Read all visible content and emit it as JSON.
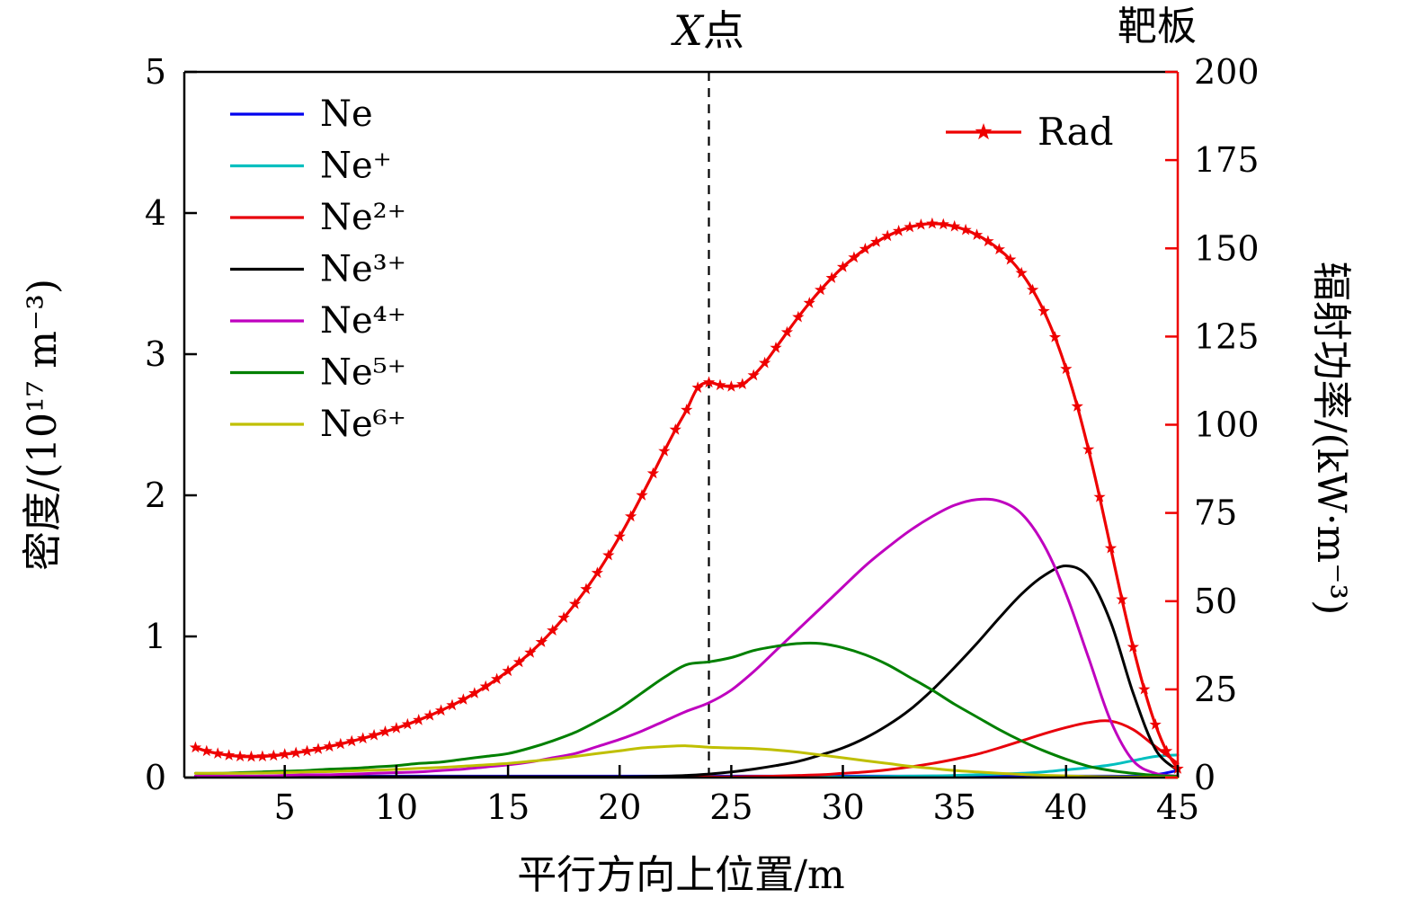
{
  "figure": {
    "background": "#ffffff",
    "axis_color": "#000000",
    "right_axis_color": "#ee0000"
  },
  "chart_data": {
    "type": "line",
    "title": "",
    "xlabel": "平行方向上位置/m",
    "ylabel_left": "密度/(10¹⁷ m⁻³)",
    "ylabel_right": "辐射功率/(kW·m⁻³)",
    "xlim": [
      0.5,
      45
    ],
    "ylim_left": [
      0,
      5
    ],
    "ylim_right": [
      0,
      200
    ],
    "x_ticks": [
      5,
      10,
      15,
      20,
      25,
      30,
      35,
      40,
      45
    ],
    "y_ticks_left": [
      0,
      1,
      2,
      3,
      4,
      5
    ],
    "y_ticks_right": [
      0,
      25,
      50,
      75,
      100,
      125,
      150,
      175,
      200
    ],
    "grid": false,
    "legend_left_position": "top-left",
    "legend_right_position": "top-right",
    "annotations": {
      "x_point_label": "X点",
      "x_point_x": 24,
      "target_plate_label": "靶板"
    },
    "x": [
      1,
      2,
      3,
      4,
      5,
      6,
      7,
      8,
      9,
      10,
      11,
      12,
      13,
      14,
      15,
      16,
      17,
      18,
      19,
      20,
      21,
      22,
      23,
      24,
      25,
      26,
      27,
      28,
      29,
      30,
      31,
      32,
      33,
      34,
      35,
      36,
      37,
      38,
      39,
      40,
      41,
      42,
      43,
      44,
      45
    ],
    "series": [
      {
        "id": "ne",
        "name": "Ne",
        "color": "#0000ee",
        "axis": "left",
        "values": [
          0.01,
          0.01,
          0.01,
          0.01,
          0.01,
          0.01,
          0.01,
          0.01,
          0.01,
          0.01,
          0.01,
          0.01,
          0.01,
          0.01,
          0.01,
          0.01,
          0.01,
          0.01,
          0.01,
          0.01,
          0.01,
          0.01,
          0.01,
          0.01,
          0.01,
          0.01,
          0.01,
          0.01,
          0.01,
          0.01,
          0.01,
          0.01,
          0.01,
          0.01,
          0.01,
          0.01,
          0.01,
          0.01,
          0.01,
          0.01,
          0.01,
          0.01,
          0.01,
          0.02,
          0.05
        ]
      },
      {
        "id": "ne1",
        "name": "Ne⁺",
        "color": "#00bfbf",
        "axis": "left",
        "values": [
          0.005,
          0.005,
          0.005,
          0.005,
          0.005,
          0.005,
          0.005,
          0.005,
          0.005,
          0.005,
          0.005,
          0.005,
          0.005,
          0.005,
          0.005,
          0.005,
          0.005,
          0.005,
          0.005,
          0.005,
          0.005,
          0.005,
          0.005,
          0.005,
          0.005,
          0.005,
          0.005,
          0.005,
          0.005,
          0.005,
          0.006,
          0.008,
          0.01,
          0.012,
          0.015,
          0.02,
          0.025,
          0.03,
          0.04,
          0.055,
          0.07,
          0.09,
          0.12,
          0.15,
          0.16
        ]
      },
      {
        "id": "ne2",
        "name": "Ne²⁺",
        "color": "#e8000b",
        "axis": "left",
        "values": [
          0.005,
          0.005,
          0.005,
          0.005,
          0.005,
          0.005,
          0.005,
          0.005,
          0.005,
          0.005,
          0.005,
          0.005,
          0.005,
          0.005,
          0.005,
          0.005,
          0.005,
          0.005,
          0.005,
          0.005,
          0.005,
          0.005,
          0.005,
          0.005,
          0.005,
          0.008,
          0.01,
          0.015,
          0.02,
          0.03,
          0.04,
          0.055,
          0.075,
          0.1,
          0.13,
          0.165,
          0.21,
          0.26,
          0.31,
          0.355,
          0.39,
          0.4,
          0.34,
          0.22,
          0.1
        ]
      },
      {
        "id": "ne3",
        "name": "Ne³⁺",
        "color": "#000000",
        "axis": "left",
        "values": [
          0.005,
          0.005,
          0.005,
          0.005,
          0.005,
          0.005,
          0.005,
          0.005,
          0.005,
          0.005,
          0.005,
          0.005,
          0.005,
          0.005,
          0.005,
          0.005,
          0.005,
          0.005,
          0.005,
          0.005,
          0.007,
          0.01,
          0.015,
          0.025,
          0.04,
          0.06,
          0.085,
          0.115,
          0.16,
          0.21,
          0.28,
          0.37,
          0.48,
          0.62,
          0.78,
          0.95,
          1.13,
          1.3,
          1.43,
          1.5,
          1.42,
          1.1,
          0.6,
          0.2,
          0.05
        ]
      },
      {
        "id": "ne4",
        "name": "Ne⁴⁺",
        "color": "#bf00bf",
        "axis": "left",
        "values": [
          0.01,
          0.01,
          0.01,
          0.01,
          0.015,
          0.02,
          0.02,
          0.025,
          0.03,
          0.035,
          0.04,
          0.05,
          0.06,
          0.075,
          0.09,
          0.11,
          0.14,
          0.17,
          0.22,
          0.27,
          0.33,
          0.4,
          0.47,
          0.53,
          0.62,
          0.75,
          0.9,
          1.05,
          1.2,
          1.35,
          1.5,
          1.63,
          1.75,
          1.85,
          1.93,
          1.97,
          1.96,
          1.87,
          1.65,
          1.3,
          0.85,
          0.4,
          0.12,
          0.03,
          0.01
        ]
      },
      {
        "id": "ne5",
        "name": "Ne⁵⁺",
        "color": "#008000",
        "axis": "left",
        "values": [
          0.03,
          0.03,
          0.035,
          0.04,
          0.045,
          0.05,
          0.06,
          0.065,
          0.075,
          0.085,
          0.1,
          0.11,
          0.13,
          0.15,
          0.17,
          0.21,
          0.26,
          0.32,
          0.4,
          0.49,
          0.6,
          0.71,
          0.8,
          0.82,
          0.85,
          0.9,
          0.93,
          0.95,
          0.95,
          0.92,
          0.87,
          0.8,
          0.71,
          0.62,
          0.52,
          0.43,
          0.34,
          0.26,
          0.19,
          0.13,
          0.08,
          0.05,
          0.03,
          0.015,
          0.01
        ]
      },
      {
        "id": "ne6",
        "name": "Ne⁶⁺",
        "color": "#bfbf00",
        "axis": "left",
        "values": [
          0.03,
          0.03,
          0.03,
          0.032,
          0.035,
          0.04,
          0.042,
          0.048,
          0.052,
          0.058,
          0.065,
          0.072,
          0.08,
          0.09,
          0.1,
          0.115,
          0.13,
          0.15,
          0.17,
          0.19,
          0.21,
          0.22,
          0.225,
          0.215,
          0.21,
          0.205,
          0.195,
          0.18,
          0.16,
          0.14,
          0.12,
          0.1,
          0.08,
          0.065,
          0.05,
          0.04,
          0.03,
          0.022,
          0.016,
          0.012,
          0.008,
          0.006,
          0.004,
          0.003,
          0.002
        ]
      }
    ],
    "rad_series": {
      "id": "rad",
      "name": "Rad",
      "color": "#ee0000",
      "axis": "right",
      "marker": "star",
      "x_start": 1,
      "x_step": 0.5,
      "values": [
        8.5,
        7.5,
        6.8,
        6.3,
        6.0,
        5.9,
        6.0,
        6.2,
        6.6,
        7.0,
        7.5,
        8.1,
        8.8,
        9.5,
        10.3,
        11.1,
        12.0,
        13.0,
        14.0,
        15.1,
        16.3,
        17.6,
        19.0,
        20.5,
        22.1,
        23.9,
        25.8,
        27.9,
        30.2,
        32.7,
        35.4,
        38.4,
        41.7,
        45.3,
        49.2,
        53.4,
        58.0,
        63.0,
        68.3,
        74.0,
        80.0,
        86.2,
        92.5,
        98.6,
        104.2,
        110.5,
        112.0,
        111.2,
        110.8,
        111.5,
        114.0,
        117.5,
        121.8,
        126.2,
        130.5,
        134.5,
        138.2,
        141.6,
        144.7,
        147.4,
        149.8,
        151.8,
        153.5,
        154.9,
        156.0,
        156.7,
        157.0,
        156.8,
        156.2,
        155.2,
        153.8,
        152.0,
        149.7,
        146.8,
        143.0,
        138.2,
        132.2,
        124.8,
        115.8,
        105.2,
        93.0,
        79.5,
        65.0,
        50.5,
        37.0,
        25.0,
        15.0,
        7.5,
        2.5
      ]
    }
  }
}
